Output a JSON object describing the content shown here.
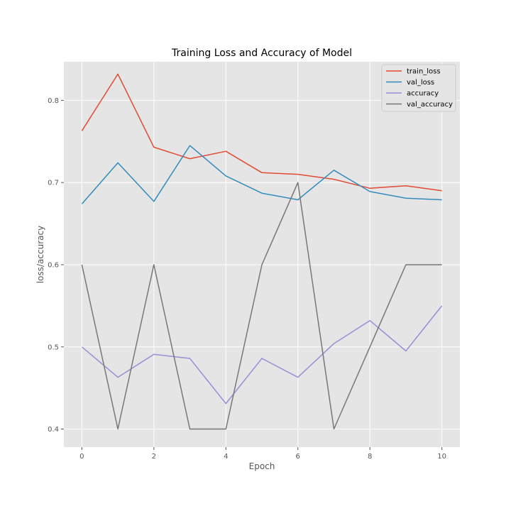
{
  "chart_data": {
    "type": "line",
    "title": "Training Loss and Accuracy of Model",
    "xlabel": "Epoch",
    "ylabel": "loss/accuracy",
    "x": [
      0,
      1,
      2,
      3,
      4,
      5,
      6,
      7,
      8,
      9,
      10
    ],
    "xlim": [
      -0.5,
      10.5
    ],
    "ylim": [
      0.378,
      0.847
    ],
    "xticks": [
      0,
      2,
      4,
      6,
      8,
      10
    ],
    "yticks": [
      0.4,
      0.5,
      0.6,
      0.7,
      0.8
    ],
    "grid": true,
    "legend_position": "top-right",
    "series": [
      {
        "name": "train_loss",
        "color": "#e24a33",
        "values": [
          0.763,
          0.832,
          0.743,
          0.729,
          0.738,
          0.712,
          0.71,
          0.704,
          0.693,
          0.696,
          0.69
        ]
      },
      {
        "name": "val_loss",
        "color": "#348abd",
        "values": [
          0.674,
          0.724,
          0.677,
          0.745,
          0.708,
          0.687,
          0.679,
          0.715,
          0.689,
          0.681,
          0.679
        ]
      },
      {
        "name": "accuracy",
        "color": "#988ed5",
        "values": [
          0.5,
          0.463,
          0.491,
          0.486,
          0.431,
          0.486,
          0.463,
          0.504,
          0.532,
          0.495,
          0.55
        ]
      },
      {
        "name": "val_accuracy",
        "color": "#777777",
        "values": [
          0.6,
          0.4,
          0.6,
          0.4,
          0.4,
          0.6,
          0.7,
          0.4,
          0.5,
          0.6,
          0.6
        ]
      }
    ]
  }
}
